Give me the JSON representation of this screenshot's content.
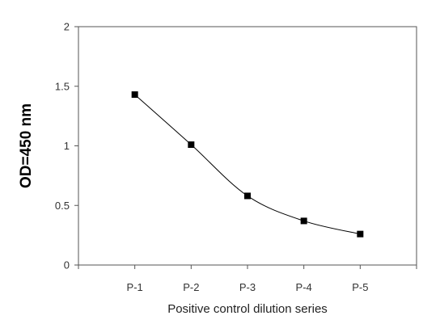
{
  "chart_data": {
    "type": "line",
    "xlabel": "Positive control dilution series",
    "ylabel": "OD=450 nm",
    "categories": [
      "P-1",
      "P-2",
      "P-3",
      "P-4",
      "P-5"
    ],
    "series": [
      {
        "values": [
          1.43,
          1.01,
          0.58,
          0.37,
          0.26
        ]
      }
    ],
    "ylim": [
      0,
      2
    ],
    "yticks": [
      "0",
      "0.5",
      "1",
      "1.5",
      "2"
    ],
    "grid": false,
    "legend": "none",
    "colors": {
      "line": "#000000",
      "marker": "#000000",
      "axis": "#555555"
    }
  }
}
